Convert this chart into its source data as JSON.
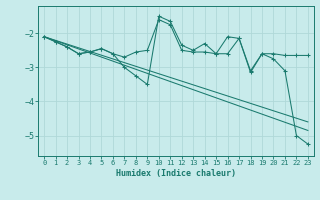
{
  "title": "",
  "xlabel": "Humidex (Indice chaleur)",
  "bg_color": "#c8ebeb",
  "grid_color": "#b0d8d8",
  "line_color": "#1a7a6e",
  "xlim": [
    -0.5,
    23.5
  ],
  "ylim": [
    -5.6,
    -1.2
  ],
  "yticks": [
    -5,
    -4,
    -3,
    -2
  ],
  "xticks": [
    0,
    1,
    2,
    3,
    4,
    5,
    6,
    7,
    8,
    9,
    10,
    11,
    12,
    13,
    14,
    15,
    16,
    17,
    18,
    19,
    20,
    21,
    22,
    23
  ],
  "line1_x": [
    0,
    1,
    2,
    3,
    4,
    5,
    6,
    7,
    8,
    9,
    10,
    11,
    12,
    13,
    14,
    15,
    16,
    17,
    18,
    19,
    20,
    21,
    22,
    23
  ],
  "line1_y": [
    -2.1,
    -2.25,
    -2.4,
    -2.6,
    -2.55,
    -2.45,
    -2.6,
    -2.7,
    -2.55,
    -2.5,
    -1.6,
    -1.75,
    -2.5,
    -2.55,
    -2.55,
    -2.6,
    -2.6,
    -2.15,
    -3.1,
    -2.6,
    -2.6,
    -2.65,
    -2.65,
    -2.65
  ],
  "line2_x": [
    0,
    1,
    2,
    3,
    4,
    5,
    6,
    7,
    8,
    9,
    10,
    11,
    12,
    13,
    14,
    15,
    16,
    17,
    18,
    19,
    20,
    21,
    22,
    23
  ],
  "line2_y": [
    -2.1,
    -2.25,
    -2.4,
    -2.6,
    -2.55,
    -2.45,
    -2.6,
    -3.0,
    -3.25,
    -3.5,
    -1.5,
    -1.65,
    -2.35,
    -2.5,
    -2.3,
    -2.6,
    -2.1,
    -2.15,
    -3.15,
    -2.6,
    -2.75,
    -3.1,
    -5.0,
    -5.25
  ],
  "line3_x": [
    0,
    23
  ],
  "line3_y": [
    -2.1,
    -4.6
  ],
  "line4_x": [
    0,
    23
  ],
  "line4_y": [
    -2.1,
    -4.85
  ]
}
